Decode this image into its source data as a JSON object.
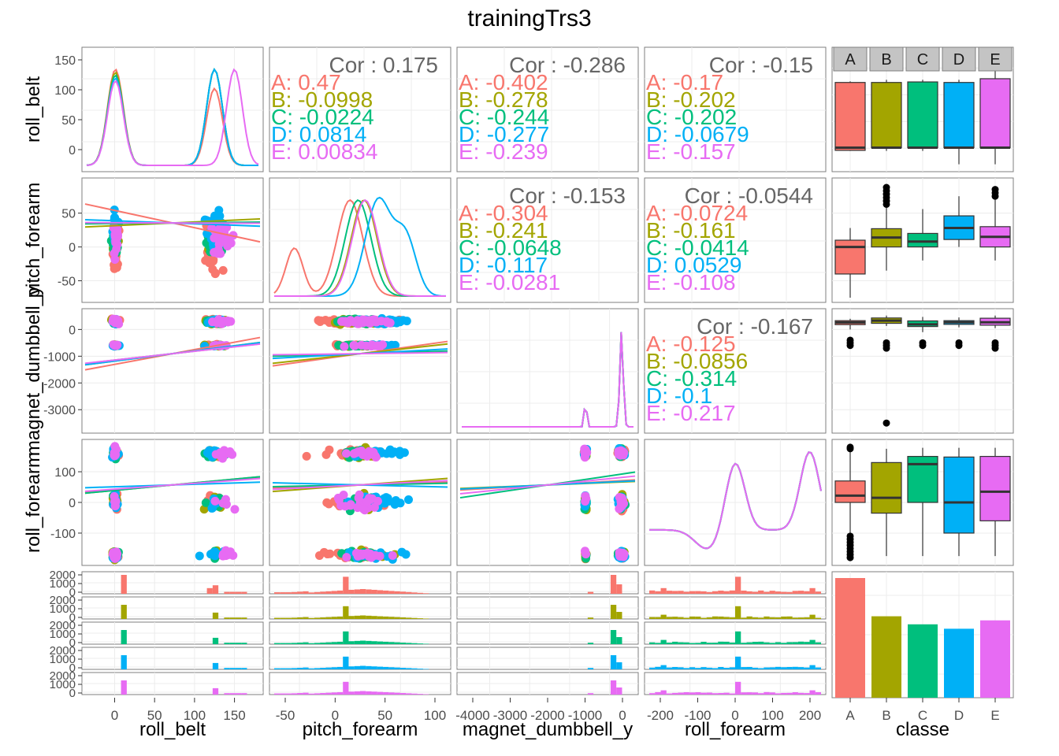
{
  "chart_data": {
    "type": "scatter",
    "title": "trainingTrs3",
    "variables": [
      "roll_belt",
      "pitch_forearm",
      "magnet_dumbbell_y",
      "roll_forearm",
      "classe"
    ],
    "classes": [
      "A",
      "B",
      "C",
      "D",
      "E"
    ],
    "colors": {
      "A": "#F8766D",
      "B": "#A3A500",
      "C": "#00BF7D",
      "D": "#00B0F6",
      "E": "#E76BF3"
    },
    "axes": {
      "roll_belt": {
        "range": [
          -35,
          180
        ],
        "ticks": [
          0,
          50,
          100,
          150
        ],
        "density_ticks": [
          0,
          50,
          100,
          150
        ]
      },
      "pitch_forearm": {
        "range": [
          -75,
          95
        ],
        "ticks": [
          -50,
          0,
          50
        ]
      },
      "magnet_dumbbell_y": {
        "range": [
          -3700,
          600
        ],
        "ticks": [
          -3000,
          -2000,
          -1000,
          0
        ]
      },
      "roll_forearm": {
        "range": [
          -190,
          190
        ],
        "ticks": [
          -100,
          0,
          100
        ]
      },
      "classe": {
        "categories": [
          "A",
          "B",
          "C",
          "D",
          "E"
        ]
      },
      "count": {
        "ticks": [
          0,
          1000,
          2000
        ]
      }
    },
    "x_tick_labels": {
      "roll_belt": [
        "0",
        "50",
        "100",
        "150"
      ],
      "pitch_forearm": [
        "-50",
        "0",
        "50",
        "100"
      ],
      "magnet_dumbbell_y": [
        "-4000",
        "-3000",
        "-2000",
        "-1000",
        "0"
      ],
      "roll_forearm": [
        "-200",
        "-100",
        "0",
        "100",
        "200"
      ],
      "classe": [
        "A",
        "B",
        "C",
        "D",
        "E"
      ]
    },
    "y_tick_labels": {
      "roll_belt": [
        "0",
        "50",
        "100",
        "150"
      ],
      "pitch_forearm": [
        "-50",
        "0",
        "50"
      ],
      "magnet_dumbbell_y": [
        "-3000",
        "-2000",
        "-1000",
        "0"
      ],
      "roll_forearm": [
        "-100",
        "0",
        "100"
      ],
      "count": [
        "0",
        "1000",
        "2000"
      ]
    },
    "correlations": [
      {
        "pair": [
          "roll_belt",
          "pitch_forearm"
        ],
        "overall": "0.175",
        "A": "0.47",
        "B": "-0.0998",
        "C": "-0.0224",
        "D": "0.0814",
        "E": "0.00834"
      },
      {
        "pair": [
          "roll_belt",
          "magnet_dumbbell_y"
        ],
        "overall": "-0.286",
        "A": "-0.402",
        "B": "-0.278",
        "C": "-0.244",
        "D": "-0.277",
        "E": "-0.239"
      },
      {
        "pair": [
          "roll_belt",
          "roll_forearm"
        ],
        "overall": "-0.15",
        "A": "-0.17",
        "B": "-0.202",
        "C": "-0.202",
        "D": "-0.0679",
        "E": "-0.157"
      },
      {
        "pair": [
          "pitch_forearm",
          "magnet_dumbbell_y"
        ],
        "overall": "-0.153",
        "A": "-0.304",
        "B": "-0.241",
        "C": "-0.0648",
        "D": "-0.117",
        "E": "-0.0281"
      },
      {
        "pair": [
          "pitch_forearm",
          "roll_forearm"
        ],
        "overall": "-0.0544",
        "A": "-0.0724",
        "B": "-0.161",
        "C": "-0.0414",
        "D": "0.0529",
        "E": "-0.108"
      },
      {
        "pair": [
          "magnet_dumbbell_y",
          "roll_forearm"
        ],
        "overall": "-0.167",
        "A": "-0.125",
        "B": "-0.0856",
        "C": "-0.314",
        "D": "-0.1",
        "E": "-0.217"
      }
    ],
    "class_counts": {
      "A": 5580,
      "B": 3797,
      "C": 3422,
      "D": 3216,
      "E": 3607
    },
    "boxplots": {
      "roll_belt": {
        "A": [
          -5,
          -4,
          1,
          123,
          125
        ],
        "B": [
          -5,
          1,
          1,
          123,
          128
        ],
        "C": [
          -5,
          1,
          1,
          124,
          128
        ],
        "D": [
          -30,
          1,
          1,
          123,
          128
        ],
        "E": [
          -30,
          1,
          1,
          130,
          150
        ]
      },
      "pitch_forearm": {
        "A": [
          -75,
          -40,
          0,
          10,
          28
        ],
        "B": [
          -35,
          0,
          14,
          27,
          58
        ],
        "C": [
          -20,
          0,
          8,
          20,
          56
        ],
        "D": [
          0,
          11,
          28,
          46,
          75
        ],
        "E": [
          -20,
          0,
          15,
          30,
          70
        ]
      },
      "magnet_dumbbell_y": {
        "A": [
          0,
          180,
          260,
          330,
          400
        ],
        "B": [
          130,
          230,
          330,
          430,
          520
        ],
        "C": [
          -100,
          110,
          190,
          320,
          470
        ],
        "D": [
          80,
          190,
          270,
          330,
          450
        ],
        "E": [
          50,
          160,
          270,
          420,
          520
        ]
      },
      "roll_forearm": {
        "A": [
          -100,
          0,
          22,
          70,
          170
        ],
        "B": [
          -175,
          -35,
          15,
          130,
          175
        ],
        "C": [
          -175,
          0,
          125,
          150,
          178
        ],
        "D": [
          -175,
          -100,
          0,
          148,
          178
        ],
        "E": [
          -175,
          -60,
          35,
          150,
          178
        ]
      }
    },
    "box_outliers": {
      "pitch_forearm": {
        "B": [
          63,
          68,
          73,
          78,
          83,
          88
        ],
        "E": [
          75,
          80,
          85
        ]
      },
      "magnet_dumbbell_y": {
        "A": [
          -400,
          -500,
          -600
        ],
        "B": [
          -500,
          -600,
          -700,
          -3500
        ],
        "C": [
          -500,
          -600
        ],
        "D": [
          -500,
          -600
        ],
        "E": [
          -500,
          -600,
          -700
        ]
      },
      "roll_forearm": {
        "A": [
          -110,
          -120,
          -130,
          -140,
          -150,
          -160,
          -170,
          -180,
          180,
          175
        ]
      }
    }
  }
}
